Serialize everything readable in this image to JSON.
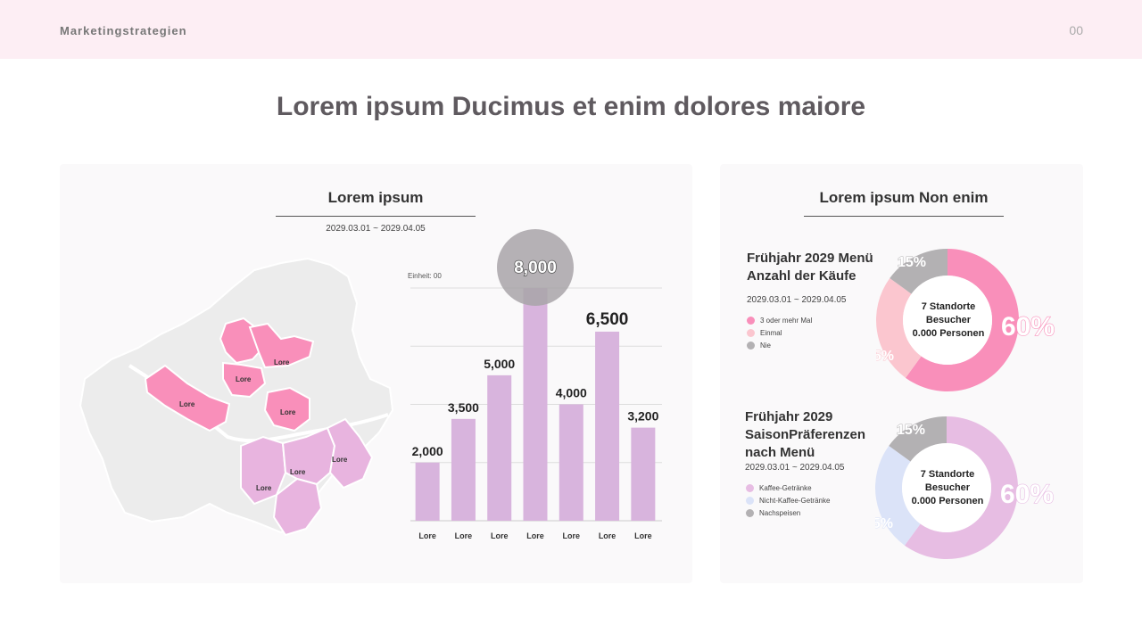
{
  "header": {
    "brand": "Marketingstrategien",
    "page_number": "00"
  },
  "page_title": "Lorem ipsum Ducimus et enim dolores maiore",
  "left_panel": {
    "title": "Lorem ipsum",
    "date_range": "2029.03.01 ~ 2029.04.05",
    "unit_label": "Einheit: 00",
    "map_labels": [
      "Lore",
      "Lore",
      "Lore",
      "Lore",
      "Lore",
      "Lore",
      "Lore",
      "Lore"
    ]
  },
  "right_panel": {
    "title": "Lorem ipsum Non enim",
    "donut1": {
      "title_line1": "Frühjahr 2029 Menü",
      "title_line2": "Anzahl der Käufe",
      "date_range": "2029.03.01 ~ 2029.04.05",
      "legend": [
        "3 oder mehr Mal",
        "Einmal",
        "Nie"
      ],
      "center_line1": "7 Standorte",
      "center_line2": "Besucher",
      "center_line3": "0.000 Personen"
    },
    "donut2": {
      "title_line1": "Frühjahr 2029",
      "title_line2": "SaisonPräferenzen",
      "title_line3": "nach Menü",
      "date_range": "2029.03.01 ~ 2029.04.05",
      "legend": [
        "Kaffee-Getränke",
        "Nicht-Kaffee-Getränke",
        "Nachspeisen"
      ],
      "center_line1": "7 Standorte",
      "center_line2": "Besucher",
      "center_line3": "0.000 Personen"
    }
  },
  "colors": {
    "bar": "#d8b4dd",
    "highlight_circle": "#a8a4a8",
    "pink": "#f98fba",
    "light_pink": "#fbc6cf",
    "grey": "#b3b1b3",
    "lavender": "#e7bde3",
    "light_blue": "#dbe3f8",
    "map_grey": "#ececec",
    "map_pink": "#f98fba",
    "map_lavender": "#e8b4df"
  },
  "chart_data": [
    {
      "type": "bar",
      "categories": [
        "Lore",
        "Lore",
        "Lore",
        "Lore",
        "Lore",
        "Lore",
        "Lore"
      ],
      "values": [
        2000,
        3500,
        5000,
        8000,
        4000,
        6500,
        3200
      ],
      "value_labels": [
        "2,000",
        "3,500",
        "5,000",
        "8,000",
        "4,000",
        "6,500",
        "3,200"
      ],
      "highlight_index": 3,
      "ylim": [
        0,
        8000
      ],
      "grid": true
    },
    {
      "type": "pie",
      "subtype": "donut",
      "labels": [
        "3 oder mehr Mal",
        "Einmal",
        "Nie"
      ],
      "values": [
        60,
        25,
        15
      ],
      "value_labels": [
        "60%",
        "25%",
        "15%"
      ],
      "colors": [
        "#f98fba",
        "#fbc6cf",
        "#b3b1b3"
      ]
    },
    {
      "type": "pie",
      "subtype": "donut",
      "labels": [
        "Kaffee-Getränke",
        "Nicht-Kaffee-Getränke",
        "Nachspeisen"
      ],
      "values": [
        60,
        25,
        15
      ],
      "value_labels": [
        "60%",
        "25%",
        "15%"
      ],
      "colors": [
        "#e7bde3",
        "#dbe3f8",
        "#b3b1b3"
      ]
    }
  ]
}
